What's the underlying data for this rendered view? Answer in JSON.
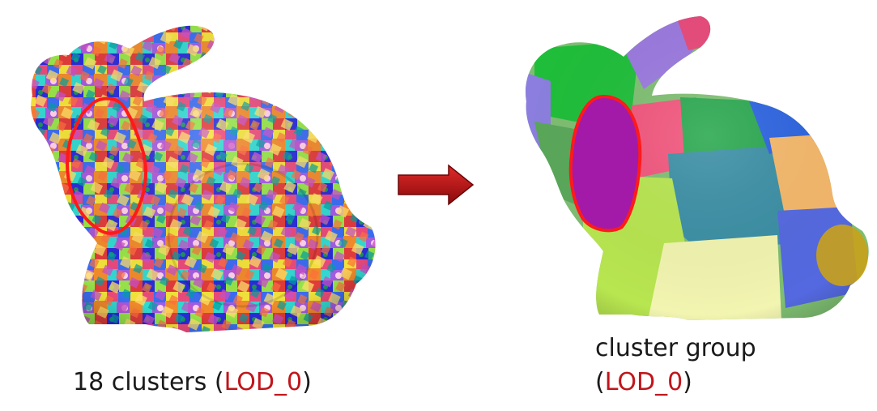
{
  "left": {
    "caption_text": "18 clusters (",
    "caption_lod": "LOD_0",
    "caption_close": ")"
  },
  "right": {
    "caption_line1": "cluster group",
    "caption_open": "(",
    "caption_lod": "LOD_0",
    "caption_close": ")"
  },
  "colors": {
    "highlight": "#ff1a1a",
    "arrow": "#b80f12",
    "lod_text": "#c0151b"
  }
}
